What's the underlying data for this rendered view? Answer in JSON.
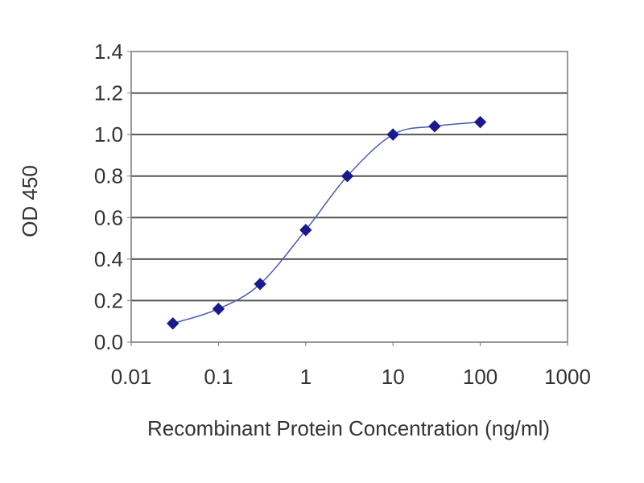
{
  "chart_data": {
    "type": "scatter",
    "title": "",
    "xlabel": "Recombinant Protein Concentration (ng/ml)",
    "ylabel": "OD 450",
    "x_scale": "log",
    "xlim": [
      0.01,
      1000
    ],
    "ylim": [
      0.0,
      1.4
    ],
    "x_ticks": [
      "0.01",
      "0.1",
      "1",
      "10",
      "100",
      "1000"
    ],
    "y_ticks": [
      "0.0",
      "0.2",
      "0.4",
      "0.6",
      "0.8",
      "1.0",
      "1.2",
      "1.4"
    ],
    "grid": "horizontal",
    "legend": "none",
    "series": [
      {
        "x": [
          0.03,
          0.1,
          0.3,
          1,
          3,
          10,
          30,
          100
        ],
        "y": [
          0.09,
          0.16,
          0.28,
          0.54,
          0.8,
          1.0,
          1.04,
          1.06
        ],
        "marker": "diamond",
        "line": "smooth",
        "color": "#1a1a8c",
        "line_color": "#4a5ab8"
      }
    ],
    "colors": {
      "grid": "#555555",
      "plot_border": "#777777",
      "tick_label": "#333333"
    }
  }
}
